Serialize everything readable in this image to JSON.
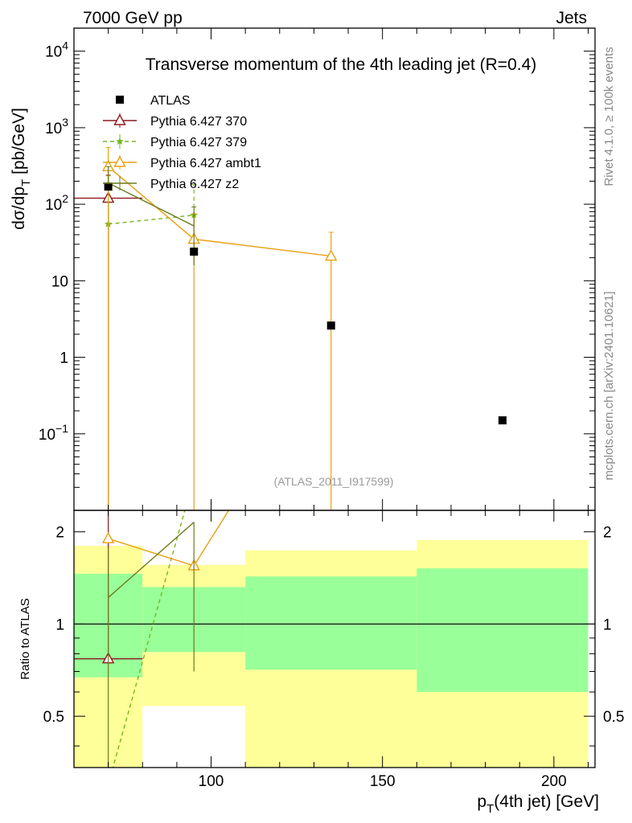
{
  "header": {
    "left_label": "7000 GeV pp",
    "right_label": "Jets"
  },
  "side_labels": {
    "rivet": "Rivet 4.1.0, ≥ 100k events",
    "mcplots": "mcplots.cern.ch [arXiv:2401.10621]"
  },
  "chart_data": {
    "type": "scatter",
    "title": "Transverse momentum of the 4th leading jet (R=0.4)",
    "watermark": "(ATLAS_2011_I917599)",
    "xlabel_main": "p",
    "xlabel_sub": "T",
    "xlabel_rest": "(4th jet) [GeV]",
    "ylabel_main": "dσ/dp",
    "ylabel_sub": "T",
    "ylabel_rest": " [pb/GeV]",
    "ratio_ylabel": "Ratio to ATLAS",
    "xlim": [
      60,
      212
    ],
    "ylim": [
      0.01,
      20000
    ],
    "ratio_ylim": [
      0.34,
      2.35
    ],
    "x_ticks": [
      100,
      150,
      200
    ],
    "x_tick_labels": [
      "100",
      "150",
      "200"
    ],
    "y_ticks": [
      0.1,
      1,
      10,
      100,
      1000,
      10000
    ],
    "y_tick_labels": [
      "10^-1",
      "1",
      "10",
      "10^2",
      "10^3",
      "10^4"
    ],
    "ratio_ticks": [
      0.5,
      1,
      2
    ],
    "ratio_tick_labels": [
      "0.5",
      "1",
      "2"
    ],
    "data": {
      "name": "ATLAS",
      "color": "#000000",
      "x": [
        70,
        95,
        135,
        185
      ],
      "y": [
        170,
        24,
        2.6,
        0.15
      ],
      "xerr_low": [
        10,
        15,
        25,
        25
      ],
      "xerr_high": [
        10,
        15,
        25,
        25
      ]
    },
    "bands": [
      {
        "xlo": 60,
        "xhi": 80,
        "yellow": [
          0.33,
          1.8
        ],
        "green": [
          0.67,
          1.46
        ]
      },
      {
        "xlo": 80,
        "xhi": 110,
        "yellow": [
          0.54,
          1.56
        ],
        "green": [
          0.81,
          1.32
        ]
      },
      {
        "xlo": 110,
        "xhi": 160,
        "yellow": [
          0.34,
          1.74
        ],
        "green": [
          0.71,
          1.43
        ]
      },
      {
        "xlo": 160,
        "xhi": 210,
        "yellow": [
          0.34,
          1.88
        ],
        "green": [
          0.6,
          1.52
        ]
      }
    ],
    "series": [
      {
        "name": "Pythia 6.427 370",
        "color": "#8b1a1a",
        "marker": "triangle-open",
        "dash": "",
        "x": [
          70
        ],
        "y": [
          120
        ],
        "yerr": [
          [
            120,
            120
          ]
        ],
        "xerr": [
          [
            10,
            10
          ]
        ],
        "ratio": [
          0.77
        ],
        "ratio_err": [
          [
            0.0,
            2.4
          ]
        ]
      },
      {
        "name": "Pythia 6.427 379",
        "color": "#7ab51d",
        "marker": "star",
        "dash": "5,4",
        "x": [
          70,
          95
        ],
        "y": [
          55,
          72
        ],
        "yerr": [
          [
            0,
            180
          ],
          [
            0,
            110
          ]
        ],
        "xerr": [
          [
            0,
            0
          ],
          [
            0,
            0
          ]
        ],
        "ratio": [
          0.3,
          3.0
        ],
        "ratio_err": [
          [
            0,
            0
          ],
          [
            0,
            0
          ]
        ]
      },
      {
        "name": "Pythia 6.427 ambt1",
        "color": "#e8a010",
        "marker": "triangle-open",
        "dash": "",
        "x": [
          70,
          95,
          135
        ],
        "y": [
          310,
          35,
          21
        ],
        "yerr": [
          [
            310,
            240
          ],
          [
            35,
            40
          ],
          [
            21,
            22
          ]
        ],
        "xerr": [
          [
            0,
            0
          ],
          [
            0,
            0
          ],
          [
            0,
            0
          ]
        ],
        "ratio": [
          1.9,
          1.55,
          8.0
        ],
        "ratio_err": [
          [
            0,
            0
          ],
          [
            0,
            0
          ],
          [
            0,
            0
          ]
        ]
      },
      {
        "name": "Pythia 6.427 z2",
        "color": "#6b7a1a",
        "marker": "none",
        "dash": "",
        "x": [
          70,
          95
        ],
        "y": [
          190,
          52
        ],
        "yerr": [
          [
            0,
            120
          ],
          [
            36,
            40
          ]
        ],
        "xerr": [
          [
            0,
            0
          ],
          [
            0,
            0
          ]
        ],
        "ratio": [
          1.22,
          2.15
        ],
        "ratio_err": [
          [
            0.9,
            0.55
          ],
          [
            1.45,
            0.0
          ]
        ]
      }
    ]
  }
}
